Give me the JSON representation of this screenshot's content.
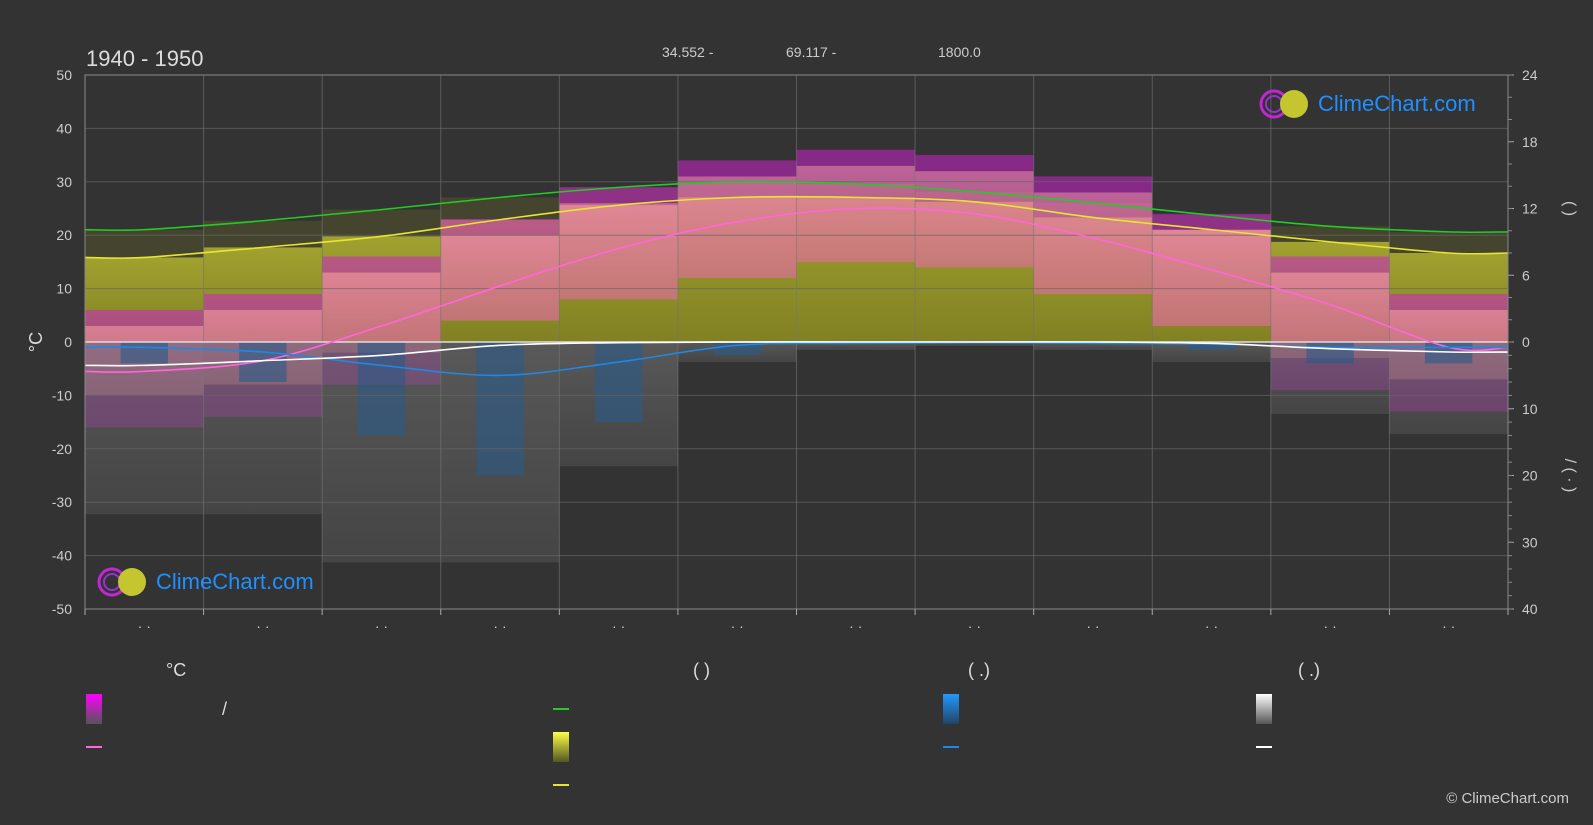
{
  "header": {
    "period": "1940 - 1950",
    "lat": "34.552 -",
    "lon": "69.117 -",
    "elevation": "1800.0"
  },
  "brand": {
    "name": "ClimeChart.com",
    "copyright": "© ClimeChart.com",
    "colors": {
      "text": "#1e90ff",
      "ring": "#c026d3",
      "sun": "#cccc33"
    }
  },
  "chart_data": {
    "type": "line",
    "months": [
      "· ·",
      "· ·",
      "· ·",
      "· ·",
      "· ·",
      "· ·",
      "· ·",
      "· ·",
      "· ·",
      "· ·",
      "· ·",
      "· ·"
    ],
    "left_axis": {
      "label": "°C",
      "range": [
        -50,
        50
      ],
      "ticks": [
        "50",
        "40",
        "30",
        "20",
        "10",
        "0",
        "-10",
        "-20",
        "-30",
        "-40",
        "-50"
      ]
    },
    "right_axis": {
      "upper_range": [
        0,
        24
      ],
      "upper_ticks": [
        "24",
        "18",
        "12",
        "6",
        "0"
      ],
      "lower_range": [
        0,
        40
      ],
      "lower_ticks": [
        "10",
        "20",
        "30",
        "40"
      ],
      "upper_label": "(      )",
      "lower_label": "/    (  ·  )"
    },
    "grid": true,
    "series": [
      {
        "key": "daylight_hours",
        "color": "#22cc22",
        "values": [
          10.1,
          10.9,
          11.9,
          13.0,
          13.9,
          14.4,
          14.2,
          13.5,
          12.5,
          11.4,
          10.4,
          9.9
        ]
      },
      {
        "key": "sunshine_hours",
        "color": "#e5e533",
        "values": [
          7.6,
          8.5,
          9.5,
          11.0,
          12.3,
          13.0,
          13.0,
          12.6,
          11.2,
          10.1,
          9.0,
          8.0
        ]
      },
      {
        "key": "mean_temperature",
        "color": "#ff66dd",
        "values": [
          -5.5,
          -3.5,
          3.0,
          10.5,
          17.5,
          22.5,
          25.0,
          24.0,
          19.5,
          13.5,
          7.0,
          -1.0
        ]
      },
      {
        "key": "avg_temp_max",
        "color": "#cc3399",
        "values": [
          3.0,
          6.0,
          13.0,
          20.0,
          26.0,
          31.0,
          33.0,
          32.0,
          28.0,
          21.0,
          13.0,
          6.0
        ]
      },
      {
        "key": "avg_temp_min",
        "color": "#cc3399",
        "values": [
          -10.0,
          -8.0,
          -2.0,
          4.0,
          8.0,
          12.0,
          15.0,
          14.0,
          9.0,
          3.0,
          -3.0,
          -7.0
        ]
      },
      {
        "key": "rainfall_mm",
        "color": "#1e88e5",
        "values": [
          0.8,
          1.5,
          3.5,
          5.0,
          3.0,
          0.5,
          0.2,
          0.1,
          0.2,
          0.3,
          0.8,
          0.8
        ]
      },
      {
        "key": "snowfall_mm",
        "color": "#ffffff",
        "values": [
          3.5,
          2.8,
          2.0,
          0.5,
          0.1,
          0.0,
          0.0,
          0.0,
          0.0,
          0.2,
          1.0,
          1.5
        ]
      }
    ]
  },
  "legend": {
    "columns": [
      {
        "heading": "°C",
        "items": [
          {
            "label": "/",
            "swatch": "gradient",
            "color": "#ff00ff"
          },
          {
            "label": "",
            "swatch": "line",
            "color": "#ff66dd"
          }
        ]
      },
      {
        "heading": "(          )",
        "items": [
          {
            "label": "",
            "swatch": "line",
            "color": "#22cc22"
          },
          {
            "label": "",
            "swatch": "gradient",
            "color": "#e5e533"
          },
          {
            "label": "",
            "swatch": "line",
            "color": "#e5e533"
          }
        ]
      },
      {
        "heading": "(   .)",
        "items": [
          {
            "label": "",
            "swatch": "gradient",
            "color": "#1e88e5"
          },
          {
            "label": "",
            "swatch": "line",
            "color": "#1e88e5"
          }
        ]
      },
      {
        "heading": "(   .)",
        "items": [
          {
            "label": "",
            "swatch": "gradient",
            "color": "#ffffff"
          },
          {
            "label": "",
            "swatch": "line",
            "color": "#ffffff"
          }
        ]
      }
    ]
  }
}
